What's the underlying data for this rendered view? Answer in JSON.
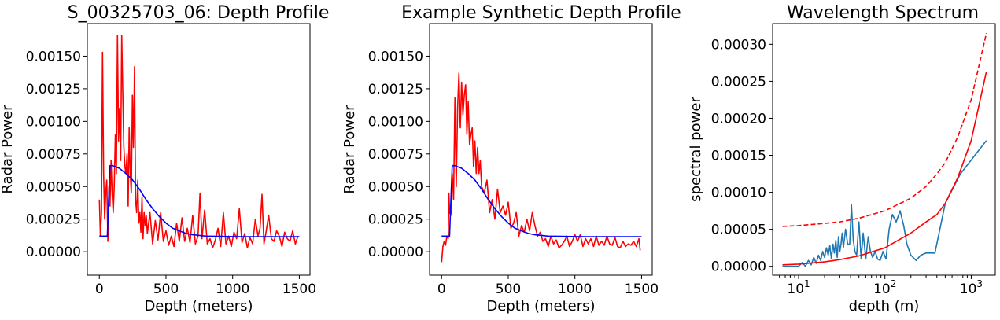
{
  "chart_data": [
    {
      "type": "line",
      "title": "S_00325703_06: Depth Profile",
      "xlabel": "Depth (meters)",
      "ylabel": "Radar Power",
      "xlim": [
        -90,
        1580
      ],
      "ylim": [
        -0.00018,
        0.00175
      ],
      "xticks": [
        0,
        500,
        1000,
        1500
      ],
      "xtick_labels": [
        "0",
        "500",
        "1000",
        "1500"
      ],
      "yticks": [
        0.0,
        0.00025,
        0.0005,
        0.00075,
        0.001,
        0.00125,
        0.0015
      ],
      "ytick_labels": [
        "0.00000",
        "0.00025",
        "0.00050",
        "0.00075",
        "0.00100",
        "0.00125",
        "0.00150"
      ],
      "grid": false,
      "series": [
        {
          "color": "#ff0000",
          "x": [
            0,
            8,
            16,
            24,
            32,
            40,
            48,
            56,
            64,
            72,
            80,
            88,
            96,
            104,
            112,
            120,
            128,
            136,
            144,
            152,
            160,
            168,
            176,
            184,
            192,
            200,
            208,
            216,
            224,
            232,
            240,
            248,
            256,
            264,
            272,
            280,
            288,
            296,
            304,
            312,
            320,
            328,
            336,
            344,
            352,
            360,
            380,
            400,
            420,
            440,
            460,
            480,
            500,
            520,
            540,
            560,
            580,
            600,
            620,
            640,
            660,
            680,
            700,
            720,
            740,
            755,
            770,
            790,
            810,
            830,
            850,
            870,
            890,
            910,
            930,
            950,
            970,
            990,
            1010,
            1030,
            1050,
            1070,
            1090,
            1110,
            1130,
            1150,
            1170,
            1190,
            1205,
            1220,
            1235,
            1250,
            1270,
            1290,
            1310,
            1330,
            1350,
            1370,
            1390,
            1410,
            1430,
            1450,
            1470,
            1490
          ],
          "y": [
            0.0004,
            0.00012,
            0.0003,
            0.00153,
            0.0006,
            0.00025,
            0.00045,
            0.00055,
            8e-05,
            0.0005,
            0.00035,
            0.0007,
            0.00045,
            0.0003,
            0.0005,
            0.0009,
            0.0006,
            0.00166,
            0.00085,
            0.0011,
            0.0007,
            0.00166,
            0.0012,
            0.0008,
            0.00065,
            0.0006,
            0.00075,
            0.00035,
            0.00095,
            0.0006,
            0.00045,
            0.0012,
            0.0008,
            0.00142,
            0.0004,
            0.0003,
            0.00055,
            0.00022,
            0.0003,
            0.00015,
            0.00042,
            0.0001,
            0.0003,
            0.0002,
            0.00028,
            0.00014,
            0.0003,
            6e-05,
            0.00024,
            9e-05,
            0.0003,
            8e-05,
            0.00016,
            5e-05,
            0.00012,
            4e-05,
            0.00022,
            8e-05,
            0.00026,
            8e-05,
            0.00018,
            7e-05,
            0.00028,
            6e-05,
            0.00012,
            0.00045,
            0.0001,
            0.00032,
            6e-05,
            0.0001,
            3e-05,
            9e-05,
            0.00018,
            4e-05,
            0.0003,
            6e-05,
            0.00012,
            4e-05,
            0.00015,
            0.0001,
            0.00033,
            7e-05,
            0.00014,
            3e-05,
            0.00011,
            6e-05,
            0.00025,
            0.00012,
            0.00018,
            0.00044,
            6e-05,
            0.00015,
            0.00028,
            0.0001,
            8e-05,
            0.00016,
            0.00012,
            4e-05,
            0.00015,
            0.0001,
            8e-05,
            0.00016,
            6e-05,
            0.00012
          ]
        },
        {
          "color": "#0000ff",
          "x": [
            0,
            60,
            70,
            80,
            100,
            150,
            200,
            250,
            300,
            350,
            400,
            450,
            500,
            550,
            600,
            650,
            700,
            800,
            900,
            1000,
            1100,
            1200,
            1300,
            1400,
            1500
          ],
          "y": [
            0.00012,
            0.00012,
            0.0004,
            0.00066,
            0.00066,
            0.00064,
            0.0006,
            0.00055,
            0.00048,
            0.0004,
            0.00033,
            0.00027,
            0.00022,
            0.00018,
            0.00016,
            0.00014,
            0.00013,
            0.00012,
            0.000118,
            0.000116,
            0.000115,
            0.000115,
            0.000115,
            0.000115,
            0.000115
          ]
        }
      ]
    },
    {
      "type": "line",
      "title": "Example Synthetic Depth Profile",
      "xlabel": "Depth (meters)",
      "ylabel": "Radar Power",
      "xlim": [
        -90,
        1580
      ],
      "ylim": [
        -0.00018,
        0.00175
      ],
      "xticks": [
        0,
        500,
        1000,
        1500
      ],
      "xtick_labels": [
        "0",
        "500",
        "1000",
        "1500"
      ],
      "yticks": [
        0.0,
        0.00025,
        0.0005,
        0.00075,
        0.001,
        0.00125,
        0.0015
      ],
      "ytick_labels": [
        "0.00000",
        "0.00025",
        "0.00050",
        "0.00075",
        "0.00100",
        "0.00125",
        "0.00150"
      ],
      "grid": false,
      "series": [
        {
          "color": "#ff0000",
          "x": [
            0,
            10,
            20,
            30,
            40,
            50,
            55,
            60,
            70,
            80,
            90,
            100,
            110,
            120,
            130,
            140,
            150,
            160,
            170,
            180,
            190,
            200,
            210,
            220,
            230,
            240,
            250,
            260,
            270,
            280,
            290,
            300,
            320,
            340,
            360,
            380,
            400,
            420,
            440,
            460,
            480,
            500,
            520,
            540,
            560,
            580,
            600,
            620,
            640,
            660,
            680,
            700,
            720,
            740,
            760,
            780,
            800,
            820,
            840,
            860,
            880,
            900,
            920,
            940,
            960,
            980,
            1000,
            1020,
            1040,
            1060,
            1080,
            1100,
            1120,
            1140,
            1160,
            1180,
            1200,
            1220,
            1240,
            1260,
            1280,
            1300,
            1320,
            1340,
            1360,
            1380,
            1400,
            1420,
            1440,
            1460,
            1480,
            1490
          ],
          "y": [
            -8e-05,
            4e-05,
            8e-05,
            5e-05,
            0.00012,
            0.0001,
            0.00045,
            0.0003,
            0.00028,
            0.0006,
            0.0004,
            0.00118,
            0.0005,
            0.0011,
            0.00137,
            0.00095,
            0.0013,
            0.00105,
            0.0012,
            0.00128,
            0.0009,
            0.00115,
            0.00082,
            0.0009,
            0.00095,
            0.00065,
            0.00085,
            0.0006,
            0.0008,
            0.0006,
            0.0007,
            0.0005,
            0.00045,
            0.00055,
            0.0003,
            0.0004,
            0.00025,
            0.00048,
            0.0003,
            0.00035,
            0.00028,
            0.00038,
            0.00018,
            0.00022,
            0.0003,
            0.00012,
            0.0002,
            0.00015,
            0.00025,
            0.00016,
            0.0003,
            0.0002,
            0.00012,
            0.00015,
            8e-05,
            0.0001,
            4e-05,
            0.00012,
            6e-05,
            9e-05,
            3e-05,
            5e-05,
            8e-05,
            0.00012,
            4e-05,
            8e-05,
            0.00013,
            8e-05,
            0.00013,
            4e-05,
            0.0001,
            6e-05,
            0.0001,
            4e-05,
            0.00012,
            5e-05,
            8e-05,
            5e-05,
            0.00012,
            6e-05,
            5e-05,
            0.00011,
            4e-05,
            3e-05,
            8e-05,
            4e-05,
            6e-05,
            5e-05,
            8e-05,
            4e-05,
            0.0001,
            1e-05
          ]
        },
        {
          "color": "#0000ff",
          "x": [
            0,
            60,
            70,
            80,
            100,
            150,
            200,
            250,
            300,
            350,
            400,
            450,
            500,
            550,
            600,
            650,
            700,
            800,
            900,
            1000,
            1100,
            1200,
            1300,
            1400,
            1500
          ],
          "y": [
            0.00012,
            0.00012,
            0.0004,
            0.00066,
            0.00066,
            0.00064,
            0.0006,
            0.00055,
            0.00048,
            0.0004,
            0.00033,
            0.00027,
            0.00022,
            0.00018,
            0.00016,
            0.00014,
            0.00013,
            0.00012,
            0.000118,
            0.000116,
            0.000115,
            0.000115,
            0.000115,
            0.000115,
            0.000115
          ]
        }
      ]
    },
    {
      "type": "line",
      "title": "Wavelength Spectrum",
      "xlabel": "depth (m)",
      "ylabel": "spectral power",
      "xscale": "log",
      "xlim": [
        5,
        1900
      ],
      "ylim": [
        -1.2e-05,
        0.000328
      ],
      "xticks": [
        10,
        100,
        1000
      ],
      "xtick_labels": [
        "10",
        "10",
        "10"
      ],
      "xtick_exponents": [
        "1",
        "2",
        "3"
      ],
      "yticks": [
        0.0,
        5e-05,
        0.0001,
        0.00015,
        0.0002,
        0.00025,
        0.0003
      ],
      "ytick_labels": [
        "0.00000",
        "0.00005",
        "0.00010",
        "0.00015",
        "0.00020",
        "0.00025",
        "0.00030"
      ],
      "grid": false,
      "series": [
        {
          "color": "#1f77b4",
          "x": [
            6.5,
            8,
            10,
            11,
            12,
            13,
            14,
            15,
            16,
            17,
            18,
            19,
            20,
            21,
            22,
            23,
            24,
            25,
            26,
            27,
            28,
            29,
            30,
            31,
            32,
            33,
            35,
            37,
            39,
            41,
            43,
            45,
            47,
            50,
            53,
            56,
            60,
            64,
            68,
            72,
            77,
            82,
            88,
            95,
            103,
            112,
            122,
            135,
            150,
            165,
            180,
            200,
            230,
            260,
            300,
            380,
            500,
            750,
            1500
          ],
          "y": [
            0.0,
            0.0,
            0.0,
            5e-06,
            0.0,
            8e-06,
            2e-06,
            1.2e-05,
            4e-06,
            1.5e-05,
            8e-06,
            2e-05,
            1.2e-05,
            2.5e-05,
            1.5e-05,
            2.8e-05,
            1e-05,
            3e-05,
            1.8e-05,
            3.5e-05,
            1.2e-05,
            4e-05,
            2e-05,
            3e-05,
            4.5e-05,
            2.5e-05,
            5e-05,
            3e-05,
            3e-05,
            8.3e-05,
            3.5e-05,
            2e-05,
            1.5e-05,
            6e-05,
            1e-05,
            4.5e-05,
            1e-05,
            4e-05,
            2e-05,
            1.2e-05,
            2e-05,
            1e-05,
            8e-06,
            2e-05,
            1e-05,
            5e-05,
            7e-05,
            6e-05,
            7.5e-05,
            5.5e-05,
            3e-05,
            1.5e-05,
            8e-06,
            1.5e-05,
            1.8e-05,
            1.8e-05,
            8.5e-05,
            0.000125,
            0.00017
          ]
        },
        {
          "color": "#ff0000",
          "x": [
            6.5,
            10,
            20,
            30,
            50,
            100,
            200,
            300,
            400,
            500,
            700,
            1000,
            1500
          ],
          "y": [
            2e-06,
            3e-06,
            6e-06,
            9e-06,
            1.4e-05,
            2.5e-05,
            4.5e-05,
            6e-05,
            7e-05,
            8.5e-05,
            0.00012,
            0.00017,
            0.000263
          ]
        },
        {
          "color": "#ff0000",
          "dashed": true,
          "x": [
            6.5,
            10,
            20,
            30,
            50,
            100,
            200,
            300,
            400,
            500,
            700,
            1000,
            1500
          ],
          "y": [
            5.4e-05,
            5.5e-05,
            5.8e-05,
            6e-05,
            6.5e-05,
            7.5e-05,
            9.2e-05,
            0.000108,
            0.000125,
            0.00014,
            0.000175,
            0.000225,
            0.000315
          ]
        }
      ]
    }
  ]
}
